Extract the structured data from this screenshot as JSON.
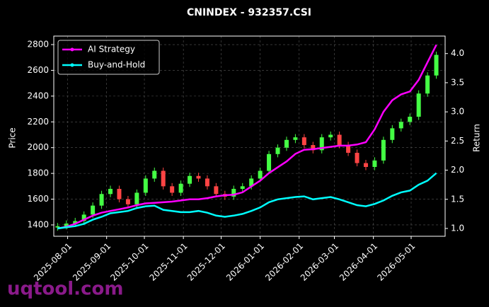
{
  "chart_data": {
    "type": "candlestick",
    "title": "CNINDEX - 932357.CSI",
    "ylabel": "Price",
    "y2label": "Return",
    "watermark": "uqtool.com",
    "grid": true,
    "legend": "upper left",
    "up_color": "#44ff44",
    "down_color": "#ff4444",
    "x": [
      "2025-07-24",
      "2025-07-31",
      "2025-08-07",
      "2025-08-14",
      "2025-08-21",
      "2025-08-28",
      "2025-09-04",
      "2025-09-11",
      "2025-09-18",
      "2025-09-25",
      "2025-10-02",
      "2025-10-09",
      "2025-10-16",
      "2025-10-23",
      "2025-10-30",
      "2025-11-06",
      "2025-11-13",
      "2025-11-20",
      "2025-11-27",
      "2025-12-04",
      "2025-12-11",
      "2025-12-18",
      "2025-12-25",
      "2026-01-01",
      "2026-01-08",
      "2026-01-15",
      "2026-01-22",
      "2026-01-29",
      "2026-02-05",
      "2026-02-12",
      "2026-02-19",
      "2026-02-26",
      "2026-03-05",
      "2026-03-12",
      "2026-03-19",
      "2026-03-26",
      "2026-04-02",
      "2026-04-09",
      "2026-04-16",
      "2026-04-23",
      "2026-04-30",
      "2026-05-07",
      "2026-05-14",
      "2026-05-21"
    ],
    "open": [
      1380,
      1390,
      1410,
      1430,
      1480,
      1550,
      1640,
      1680,
      1600,
      1560,
      1650,
      1760,
      1820,
      1700,
      1650,
      1720,
      1780,
      1760,
      1700,
      1640,
      1620,
      1680,
      1700,
      1760,
      1820,
      1950,
      2000,
      2060,
      2080,
      2020,
      1980,
      2080,
      2100,
      2020,
      1960,
      1880,
      1850,
      1900,
      2060,
      2150,
      2200,
      2240,
      2420,
      2560
    ],
    "high": [
      1415,
      1435,
      1455,
      1505,
      1575,
      1665,
      1705,
      1705,
      1625,
      1675,
      1785,
      1845,
      1845,
      1725,
      1745,
      1805,
      1805,
      1785,
      1725,
      1665,
      1705,
      1725,
      1785,
      1845,
      1975,
      2025,
      2085,
      2105,
      2105,
      2045,
      2105,
      2125,
      2125,
      2045,
      1985,
      1905,
      1925,
      2085,
      2175,
      2225,
      2265,
      2445,
      2585,
      2745
    ],
    "low": [
      1355,
      1365,
      1385,
      1405,
      1455,
      1525,
      1615,
      1575,
      1535,
      1535,
      1625,
      1735,
      1675,
      1625,
      1625,
      1695,
      1735,
      1675,
      1615,
      1595,
      1595,
      1655,
      1675,
      1735,
      1795,
      1925,
      1975,
      2035,
      1995,
      1955,
      1955,
      2055,
      1995,
      1935,
      1855,
      1825,
      1825,
      1875,
      2035,
      2125,
      2175,
      2215,
      2395,
      2535
    ],
    "close": [
      1390,
      1410,
      1430,
      1480,
      1550,
      1640,
      1680,
      1600,
      1560,
      1650,
      1760,
      1820,
      1700,
      1650,
      1720,
      1780,
      1760,
      1700,
      1640,
      1620,
      1680,
      1700,
      1760,
      1820,
      1950,
      2000,
      2060,
      2080,
      2020,
      1980,
      2080,
      2100,
      2020,
      1960,
      1880,
      1850,
      1900,
      2060,
      2150,
      2200,
      2240,
      2420,
      2560,
      2720
    ],
    "series": [
      {
        "name": "AI Strategy",
        "color": "#ff00ff",
        "axis": "y2",
        "values": [
          1.0,
          1.03,
          1.08,
          1.15,
          1.22,
          1.27,
          1.3,
          1.33,
          1.36,
          1.4,
          1.43,
          1.44,
          1.45,
          1.46,
          1.48,
          1.5,
          1.5,
          1.52,
          1.55,
          1.57,
          1.58,
          1.62,
          1.72,
          1.82,
          1.95,
          2.05,
          2.15,
          2.28,
          2.35,
          2.36,
          2.38,
          2.4,
          2.42,
          2.42,
          2.44,
          2.48,
          2.7,
          3.0,
          3.2,
          3.3,
          3.35,
          3.55,
          3.85,
          4.15
        ]
      },
      {
        "name": "Buy-and-Hold",
        "color": "#00ffff",
        "axis": "y2",
        "values": [
          1.0,
          1.02,
          1.04,
          1.08,
          1.15,
          1.2,
          1.26,
          1.28,
          1.3,
          1.35,
          1.38,
          1.39,
          1.32,
          1.3,
          1.28,
          1.28,
          1.3,
          1.27,
          1.22,
          1.2,
          1.22,
          1.25,
          1.3,
          1.36,
          1.45,
          1.5,
          1.52,
          1.54,
          1.55,
          1.5,
          1.52,
          1.54,
          1.5,
          1.45,
          1.4,
          1.38,
          1.42,
          1.48,
          1.56,
          1.62,
          1.65,
          1.75,
          1.82,
          1.95
        ]
      }
    ],
    "xlim": [
      "2025-07-21",
      "2026-05-28"
    ],
    "xticks": [
      "2025-08-01",
      "2025-09-01",
      "2025-10-01",
      "2025-11-01",
      "2025-12-01",
      "2026-01-01",
      "2026-02-01",
      "2026-03-01",
      "2026-04-01",
      "2026-05-01"
    ],
    "ylim": [
      1312,
      2866
    ],
    "yticks": [
      1400,
      1600,
      1800,
      2000,
      2200,
      2400,
      2600,
      2800
    ],
    "y2lim": [
      0.866,
      4.3
    ],
    "y2ticks": [
      {
        "value": 1,
        "label": "1.0"
      },
      1.5,
      {
        "value": 2,
        "label": "2.0"
      },
      2.5,
      {
        "value": 3,
        "label": "3.0"
      },
      3.5,
      {
        "value": 4,
        "label": "4.0"
      }
    ]
  }
}
